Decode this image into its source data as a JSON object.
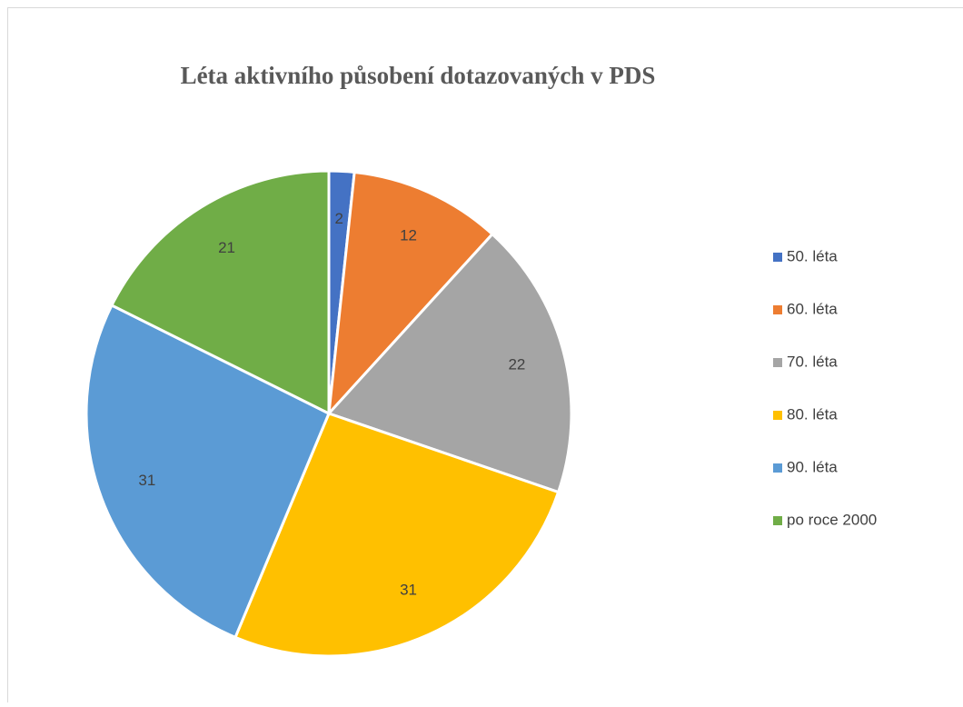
{
  "chart_data": {
    "type": "pie",
    "title": "Léta aktivního působení dotazovaných v PDS",
    "categories": [
      "50. léta",
      "60. léta",
      "70. léta",
      "80. léta",
      "90. léta",
      "po roce 2000"
    ],
    "values": [
      2,
      12,
      22,
      31,
      31,
      21
    ],
    "colors": [
      "#4472c4",
      "#ed7d31",
      "#a5a5a5",
      "#ffc000",
      "#5b9bd5",
      "#70ad47"
    ],
    "legend": "right"
  }
}
